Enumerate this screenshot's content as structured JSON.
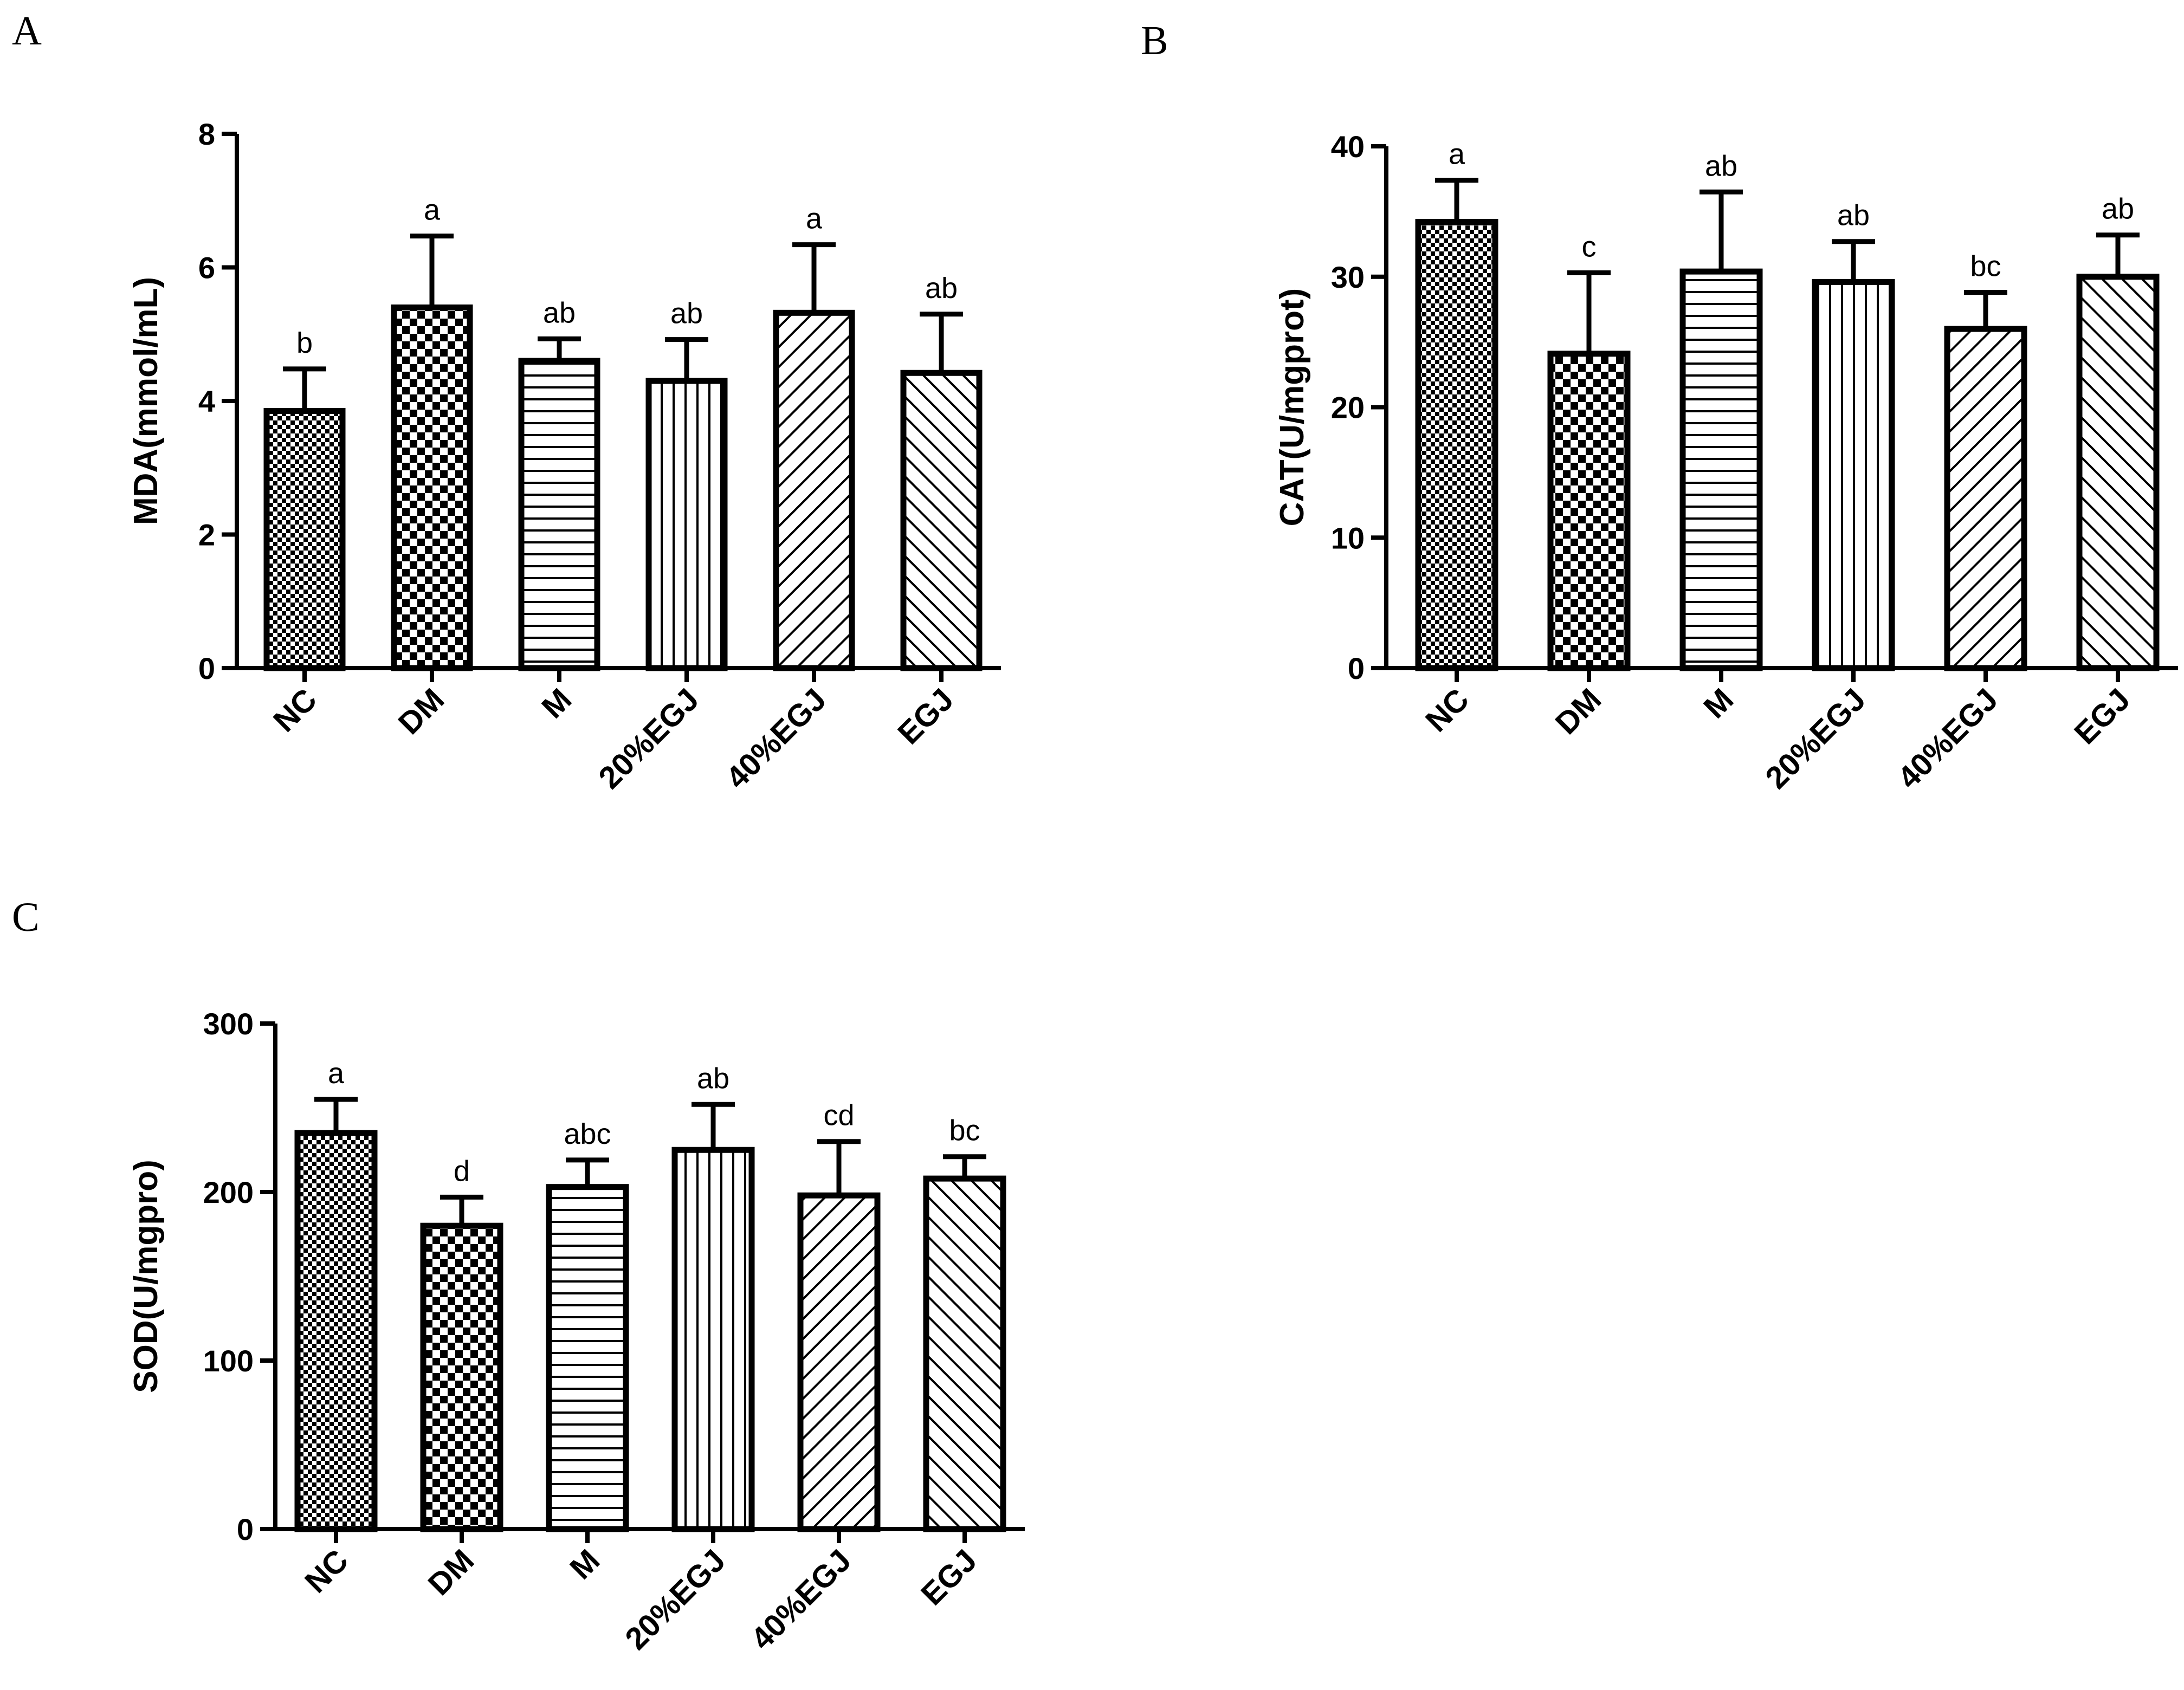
{
  "figure": {
    "panel_letters": [
      "A",
      "B",
      "C"
    ]
  },
  "chart_data": [
    {
      "id": "A",
      "type": "bar",
      "title": "",
      "xlabel": "",
      "ylabel": "MDA(mmol/mL)",
      "ylim": [
        0,
        8
      ],
      "yticks": [
        0,
        2,
        4,
        6,
        8
      ],
      "grid": false,
      "categories": [
        "NC",
        "DM",
        "M",
        "20%EGJ",
        "40%EGJ",
        "EGJ"
      ],
      "values": [
        3.85,
        5.4,
        4.6,
        4.3,
        5.32,
        4.42
      ],
      "errors": [
        0.63,
        1.07,
        0.33,
        0.62,
        1.02,
        0.88
      ],
      "significance": [
        "b",
        "a",
        "ab",
        "ab",
        "a",
        "ab"
      ],
      "patterns": [
        "dense-check",
        "check",
        "horizontal",
        "vertical",
        "diag-up",
        "diag-down"
      ]
    },
    {
      "id": "B",
      "type": "bar",
      "title": "",
      "xlabel": "",
      "ylabel": "CAT(U/mgprot)",
      "ylim": [
        0,
        40
      ],
      "yticks": [
        0,
        10,
        20,
        30,
        40
      ],
      "grid": false,
      "categories": [
        "NC",
        "DM",
        "M",
        "20%EGJ",
        "40%EGJ",
        "EGJ"
      ],
      "values": [
        34.2,
        24.1,
        30.4,
        29.6,
        26.0,
        30.0
      ],
      "errors": [
        3.2,
        6.2,
        6.1,
        3.1,
        2.8,
        3.2
      ],
      "significance": [
        "a",
        "c",
        "ab",
        "ab",
        "bc",
        "ab"
      ],
      "patterns": [
        "dense-check",
        "check",
        "horizontal",
        "vertical",
        "diag-up",
        "diag-down"
      ]
    },
    {
      "id": "C",
      "type": "bar",
      "title": "",
      "xlabel": "",
      "ylabel": "SOD(U/mgpro)",
      "ylim": [
        0,
        300
      ],
      "yticks": [
        0,
        100,
        200,
        300
      ],
      "grid": false,
      "categories": [
        "NC",
        "DM",
        "M",
        "20%EGJ",
        "40%EGJ",
        "EGJ"
      ],
      "values": [
        235,
        180,
        203,
        225,
        198,
        208
      ],
      "errors": [
        20,
        17,
        16,
        27,
        32,
        13
      ],
      "significance": [
        "a",
        "d",
        "abc",
        "ab",
        "cd",
        "bc"
      ],
      "patterns": [
        "dense-check",
        "check",
        "horizontal",
        "vertical",
        "diag-up",
        "diag-down"
      ]
    }
  ]
}
